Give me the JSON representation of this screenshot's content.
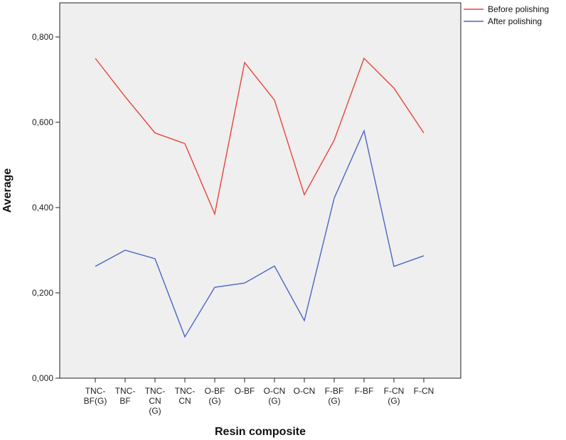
{
  "chart_data": {
    "type": "line",
    "title": "",
    "xlabel": "Resin composite",
    "ylabel": "Average",
    "categories": [
      [
        "TNC-",
        "BF(G)"
      ],
      [
        "TNC-",
        "BF"
      ],
      [
        "TNC-",
        "CN",
        "(G)"
      ],
      [
        "TNC-",
        "CN"
      ],
      [
        "O-BF",
        "(G)"
      ],
      [
        "O-BF"
      ],
      [
        "O-CN",
        "(G)"
      ],
      [
        "O-CN"
      ],
      [
        "F-BF",
        "(G)"
      ],
      [
        "F-BF"
      ],
      [
        "F-CN",
        "(G)"
      ],
      [
        "F-CN"
      ]
    ],
    "y_ticks": [
      "0,000",
      "0,200",
      "0,400",
      "0,600",
      "0,800"
    ],
    "y_tick_values": [
      0,
      0.2,
      0.4,
      0.6,
      0.8
    ],
    "ylim": [
      0,
      0.88
    ],
    "grid": false,
    "legend_position": "top-right",
    "background": "#efefef",
    "series": [
      {
        "name": "Before polishing",
        "color": "#e8443a",
        "values": [
          0.75,
          0.66,
          0.575,
          0.55,
          0.385,
          0.74,
          0.652,
          0.43,
          0.558,
          0.75,
          0.68,
          0.575
        ]
      },
      {
        "name": "After polishing",
        "color": "#4a66c4",
        "values": [
          0.262,
          0.3,
          0.28,
          0.097,
          0.213,
          0.223,
          0.263,
          0.135,
          0.422,
          0.58,
          0.262,
          0.287
        ]
      }
    ]
  }
}
